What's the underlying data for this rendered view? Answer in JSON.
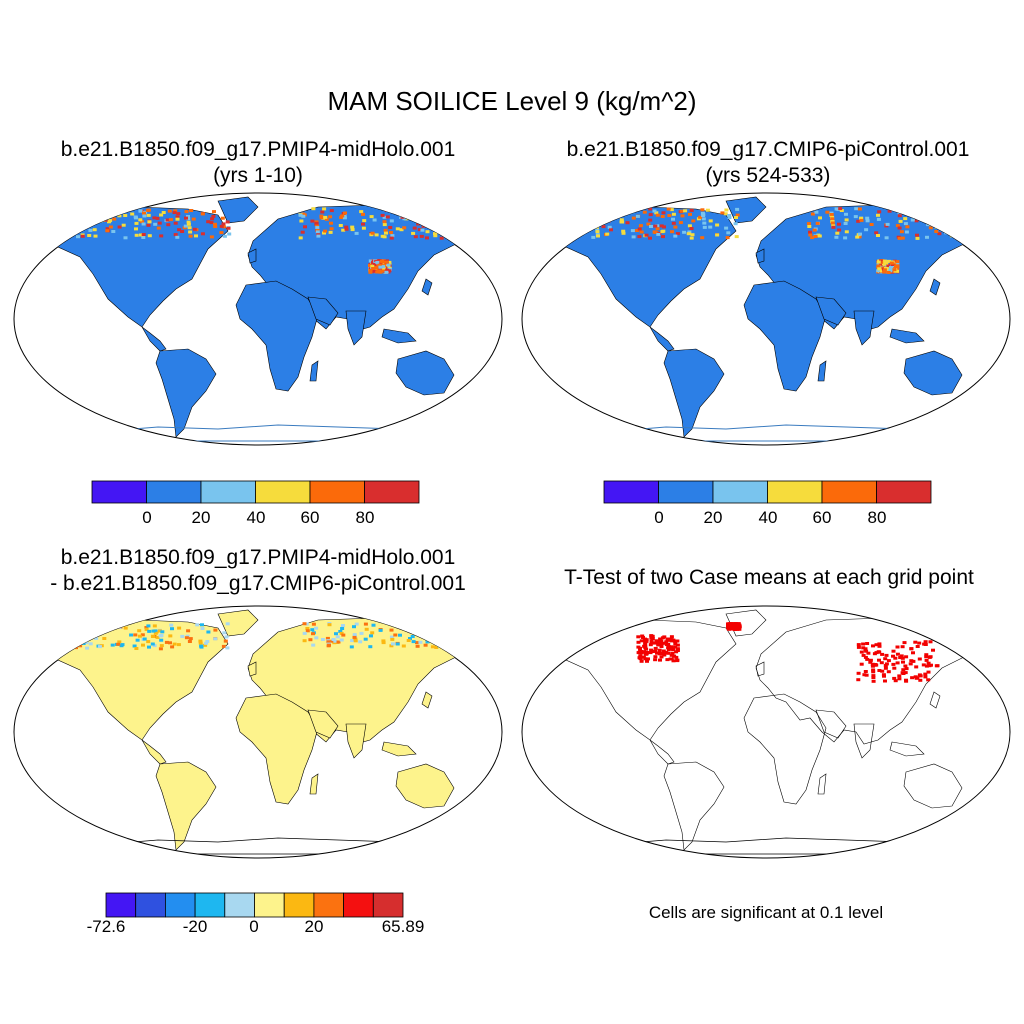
{
  "main_title": "MAM SOILICE Level 9 (kg/m^2)",
  "panels": [
    {
      "title_line1": "b.e21.B1850.f09_g17.PMIP4-midHolo.001",
      "title_line2": "(yrs 1-10)"
    },
    {
      "title_line1": "b.e21.B1850.f09_g17.CMIP6-piControl.001",
      "title_line2": "(yrs 524-533)"
    },
    {
      "title_line1": "b.e21.B1850.f09_g17.PMIP4-midHolo.001",
      "title_line2": "- b.e21.B1850.f09_g17.CMIP6-piControl.001"
    },
    {
      "title_line1": "T-Test of two Case means at each grid point",
      "title_line2": ""
    }
  ],
  "colorbar_abs": {
    "colors": [
      "#4416f4",
      "#2c7fe6",
      "#79c4ee",
      "#f6dc3c",
      "#fb6a0a",
      "#d92e2e"
    ],
    "labels": [
      "0",
      "20",
      "40",
      "60",
      "80"
    ]
  },
  "colorbar_diff": {
    "colors": [
      "#4416f4",
      "#2f51e0",
      "#238ef0",
      "#1eb7f0",
      "#a8d8f0",
      "#fdf38c",
      "#fbb812",
      "#fb7210",
      "#f41010",
      "#d62e2e"
    ],
    "labels": [
      "-72.6",
      "-20",
      "0",
      "20",
      "65.89"
    ]
  },
  "ttest_note": "Cells are significant at 0.1 level",
  "colors": {
    "land_abs": "#2c7fe6",
    "land_diff": "#fdf38c",
    "signif": "#f20000"
  }
}
